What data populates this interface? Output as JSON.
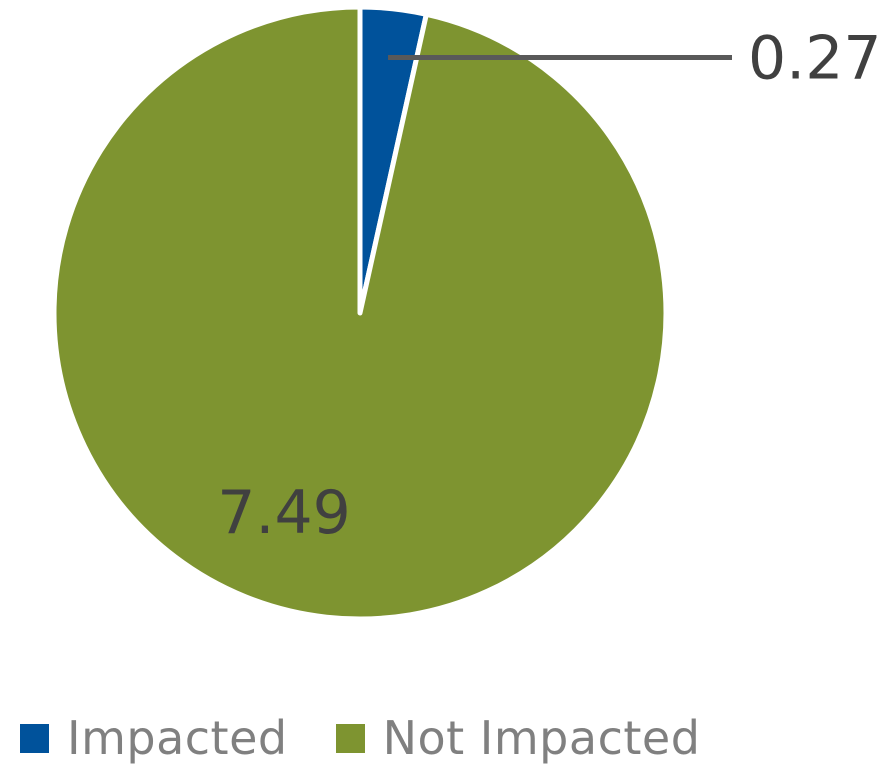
{
  "chart_data": {
    "type": "pie",
    "categories": [
      "Impacted",
      "Not Impacted"
    ],
    "values": [
      0.27,
      7.49
    ],
    "data_labels": [
      "0.27",
      "7.49"
    ],
    "colors": [
      "#00529b",
      "#7e9430"
    ],
    "start_angle_deg": 0,
    "direction": "clockwise",
    "legend_position": "bottom-left"
  }
}
